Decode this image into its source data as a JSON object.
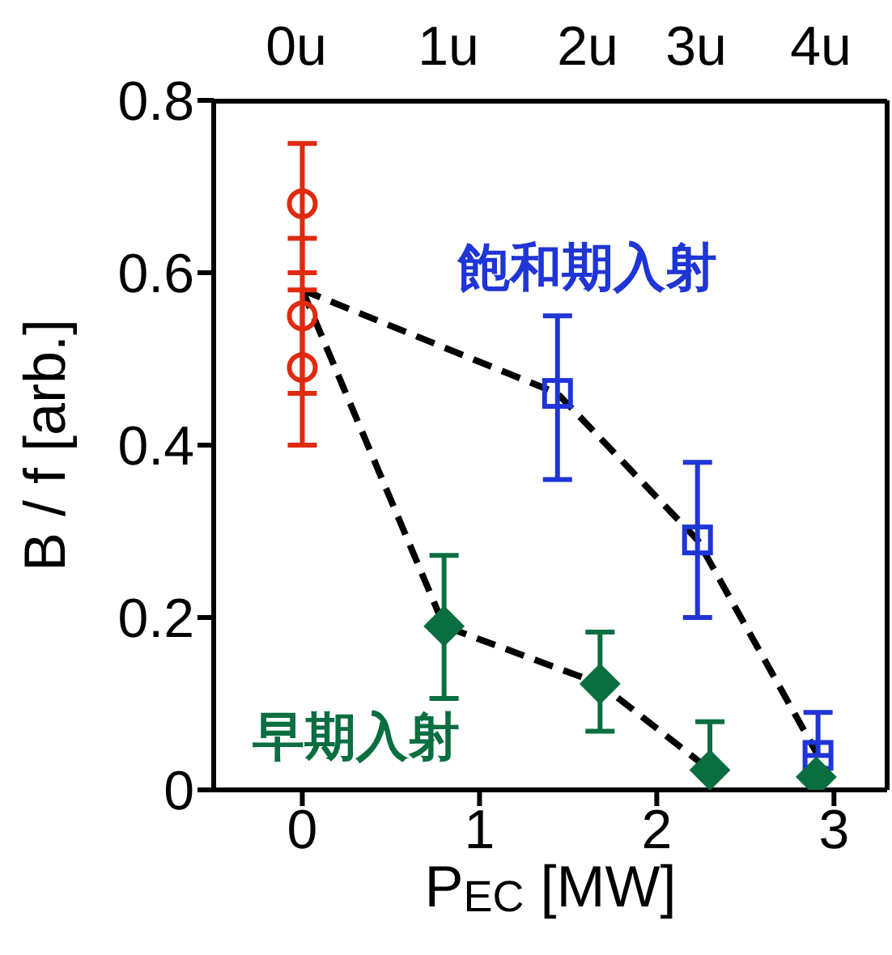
{
  "chart_data": {
    "type": "scatter",
    "xlabel": "P$_{EC}$ [MW]",
    "ylabel": "B / f [arb.]",
    "xlim": [
      -0.5,
      3.3
    ],
    "xticks": [
      0,
      1,
      2,
      3
    ],
    "ylim": [
      0,
      0.8
    ],
    "yticks": [
      0,
      0.2,
      0.4,
      0.6,
      0.8
    ],
    "annotations": [
      "0u",
      "1u",
      "2u",
      "3u",
      "4u"
    ],
    "legend": false,
    "series": [
      {
        "type": "line",
        "color": "#000000",
        "line_style": "dashed",
        "marker": "none",
        "x": [
          0,
          1.44,
          2.23,
          2.91
        ],
        "values": [
          0.58,
          0.46,
          0.29,
          0.04
        ]
      },
      {
        "type": "line",
        "color": "#000000",
        "line_style": "dashed",
        "marker": "none",
        "x": [
          0,
          0.8,
          1.68,
          2.3
        ],
        "values": [
          0.58,
          0.19,
          0.123,
          0.023
        ]
      },
      {
        "color": "#e02a10",
        "marker": "circle",
        "x": [
          0,
          0,
          0
        ],
        "values": [
          0.68,
          0.55,
          0.49
        ],
        "errors": [
          [
            0.6,
            0.75
          ],
          [
            0.46,
            0.64
          ],
          [
            0.4,
            0.58
          ]
        ]
      },
      {
        "name": "飽和期入射",
        "color": "#1f35d6",
        "marker": "square",
        "x": [
          1.44,
          2.23,
          2.91
        ],
        "values": [
          0.46,
          0.29,
          0.04
        ],
        "errors": [
          [
            0.36,
            0.55
          ],
          [
            0.2,
            0.38
          ],
          [
            0.04,
            0.09
          ]
        ]
      },
      {
        "name": "早期入射",
        "color": "#0a6e40",
        "marker": "diamond",
        "x": [
          0.8,
          1.68,
          2.3,
          2.9
        ],
        "values": [
          0.19,
          0.123,
          0.023,
          0.015
        ],
        "errors": [
          [
            0.106,
            0.272
          ],
          [
            0.068,
            0.183
          ],
          [
            0,
            0.079
          ],
          null
        ]
      }
    ]
  }
}
